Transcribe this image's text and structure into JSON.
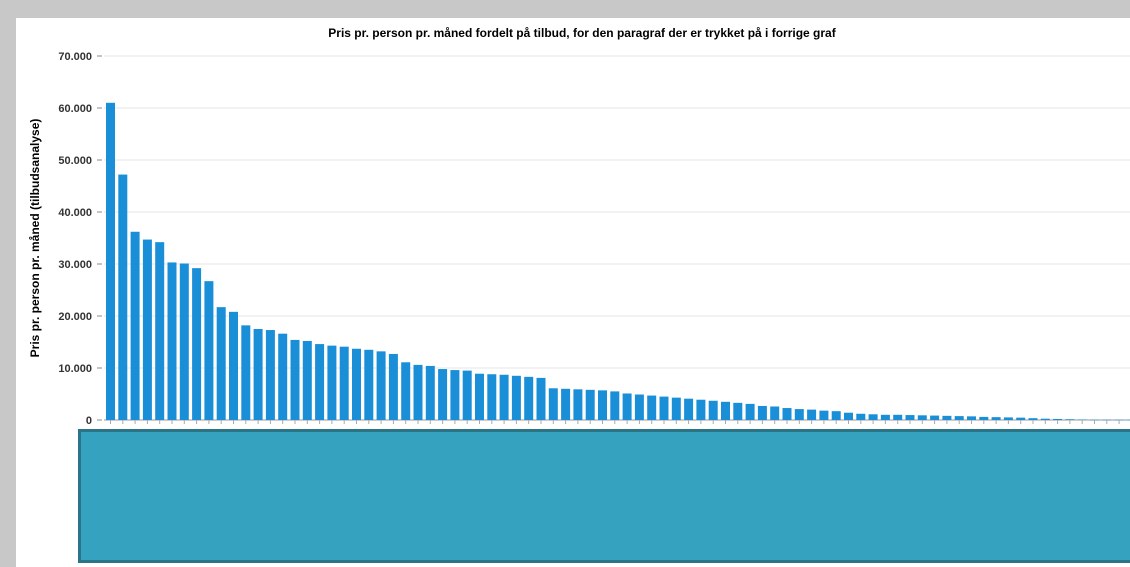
{
  "chart_data": {
    "type": "bar",
    "title": "Pris pr. person pr. måned fordelt på tilbud, for den paragraf der er trykket på i forrige graf",
    "xlabel": "",
    "ylabel": "Pris pr. person pr. måned (tilbudsanalyse)",
    "ylim": [
      0,
      70000
    ],
    "yticks": [
      "0",
      "10.000",
      "20.000",
      "30.000",
      "40.000",
      "50.000",
      "60.000",
      "70.000"
    ],
    "grid": true,
    "legend": "none",
    "bar_color": "#1a8fd8",
    "values": [
      61000,
      47200,
      36200,
      34700,
      34200,
      30300,
      30100,
      29200,
      26700,
      21700,
      20800,
      18200,
      17500,
      17300,
      16600,
      15400,
      15200,
      14600,
      14300,
      14100,
      13700,
      13500,
      13200,
      12700,
      11100,
      10600,
      10400,
      9800,
      9600,
      9500,
      8900,
      8800,
      8700,
      8500,
      8300,
      8100,
      6100,
      6000,
      5900,
      5800,
      5700,
      5500,
      5100,
      4900,
      4700,
      4500,
      4300,
      4100,
      3900,
      3700,
      3500,
      3300,
      3100,
      2700,
      2600,
      2300,
      2100,
      2000,
      1800,
      1700,
      1400,
      1200,
      1100,
      1000,
      1000,
      950,
      900,
      850,
      800,
      750,
      700,
      600,
      550,
      500,
      450,
      350,
      250,
      200,
      150,
      100,
      50,
      50,
      50,
      50
    ]
  },
  "overlay": {
    "color": "#35a2bf"
  }
}
